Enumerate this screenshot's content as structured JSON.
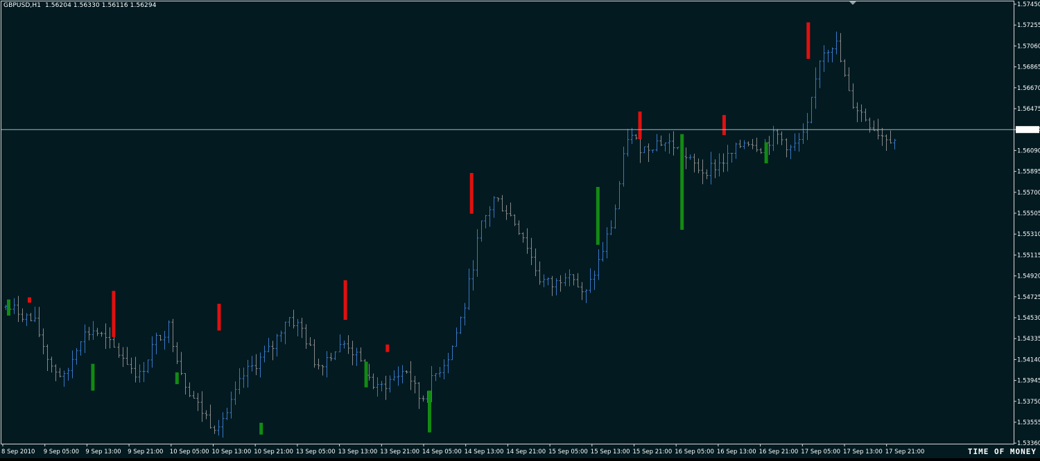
{
  "header": {
    "symbol_info": "GBPUSD,H1  1.56204 1.56330 1.56116 1.56294"
  },
  "watermark": "TIME OF MONEY",
  "colors": {
    "background": "#021a20",
    "frame": "#d8d8d8",
    "bar_up": "#3a78c8",
    "bar_down": "#8a8a8a",
    "highlight_bear": "#e01010",
    "highlight_bull": "#138a13",
    "price_line": "#a8b8c0",
    "text": "#ffffff"
  },
  "price_axis": {
    "labels": [
      "1.57450",
      "1.57255",
      "1.57060",
      "1.56865",
      "1.56670",
      "1.56475",
      "1.56294",
      "1.56090",
      "1.55895",
      "1.55700",
      "1.55505",
      "1.55310",
      "1.55115",
      "1.54920",
      "1.54725",
      "1.54530",
      "1.54335",
      "1.54140",
      "1.53945",
      "1.53750",
      "1.53555",
      "1.53360"
    ],
    "current": "1.56294"
  },
  "time_axis": {
    "labels": [
      "8 Sep 2010",
      "9 Sep 05:00",
      "9 Sep 13:00",
      "9 Sep 21:00",
      "10 Sep 05:00",
      "10 Sep 13:00",
      "10 Sep 21:00",
      "13 Sep 05:00",
      "13 Sep 13:00",
      "13 Sep 21:00",
      "14 Sep 05:00",
      "14 Sep 13:00",
      "14 Sep 21:00",
      "15 Sep 05:00",
      "15 Sep 13:00",
      "15 Sep 21:00",
      "16 Sep 05:00",
      "16 Sep 13:00",
      "16 Sep 21:00",
      "17 Sep 05:00",
      "17 Sep 13:00",
      "17 Sep 21:00"
    ]
  },
  "chart_data": {
    "type": "ohlc",
    "symbol": "GBPUSD",
    "timeframe": "H1",
    "ylim": [
      1.5336,
      1.5745
    ],
    "x_start": "8 Sep 2010",
    "x_end": "17 Sep 21:00",
    "approx_closes_per_4h_block": [
      1.5463,
      1.5458,
      1.5447,
      1.541,
      1.5395,
      1.5435,
      1.5442,
      1.5428,
      1.5415,
      1.5398,
      1.543,
      1.5445,
      1.5395,
      1.537,
      1.5352,
      1.5365,
      1.5398,
      1.5412,
      1.5425,
      1.5455,
      1.5442,
      1.5408,
      1.542,
      1.543,
      1.5408,
      1.5385,
      1.5395,
      1.5405,
      1.5375,
      1.54,
      1.542,
      1.5465,
      1.5535,
      1.5565,
      1.555,
      1.5528,
      1.549,
      1.5482,
      1.55,
      1.547,
      1.5505,
      1.5545,
      1.5625,
      1.561,
      1.5618,
      1.5615,
      1.56,
      1.559,
      1.5595,
      1.5605,
      1.562,
      1.5612,
      1.5625,
      1.561,
      1.5625,
      1.57,
      1.571,
      1.5655,
      1.564,
      1.5625,
      1.562
    ],
    "highlighted_bars": [
      {
        "time": "8 Sep 2010",
        "direction": "bull",
        "open": 1.547,
        "close": 1.5455
      },
      {
        "time": "8 Sep 2010",
        "direction": "bear",
        "open": 1.5472,
        "close": 1.5467
      },
      {
        "time": "9 Sep 13:00",
        "direction": "bull",
        "open": 1.541,
        "close": 1.5385
      },
      {
        "time": "9 Sep 13:00",
        "direction": "bear",
        "open": 1.5478,
        "close": 1.5435
      },
      {
        "time": "10 Sep 05:00",
        "direction": "bull",
        "open": 1.5402,
        "close": 1.5391
      },
      {
        "time": "10 Sep 13:00",
        "direction": "bear",
        "open": 1.5466,
        "close": 1.5441
      },
      {
        "time": "10 Sep 21:00",
        "direction": "bull",
        "open": 1.5355,
        "close": 1.5344
      },
      {
        "time": "13 Sep 13:00",
        "direction": "bear",
        "open": 1.5488,
        "close": 1.5451
      },
      {
        "time": "13 Sep 13:00",
        "direction": "bull",
        "open": 1.5412,
        "close": 1.5388
      },
      {
        "time": "13 Sep 21:00",
        "direction": "bear",
        "open": 1.5428,
        "close": 1.5421
      },
      {
        "time": "14 Sep 05:00",
        "direction": "bull",
        "open": 1.5385,
        "close": 1.5346
      },
      {
        "time": "14 Sep 13:00",
        "direction": "bear",
        "open": 1.5588,
        "close": 1.555
      },
      {
        "time": "15 Sep 13:00",
        "direction": "bull",
        "open": 1.5575,
        "close": 1.5521
      },
      {
        "time": "15 Sep 21:00",
        "direction": "bear",
        "open": 1.5645,
        "close": 1.562
      },
      {
        "time": "16 Sep 05:00",
        "direction": "bull",
        "open": 1.5625,
        "close": 1.5535
      },
      {
        "time": "16 Sep 13:00",
        "direction": "bear",
        "open": 1.5642,
        "close": 1.5624
      },
      {
        "time": "16 Sep 21:00",
        "direction": "bull",
        "open": 1.5617,
        "close": 1.5597
      },
      {
        "time": "17 Sep 05:00",
        "direction": "bear",
        "open": 1.5728,
        "close": 1.5694
      }
    ],
    "current_price": 1.56294
  }
}
